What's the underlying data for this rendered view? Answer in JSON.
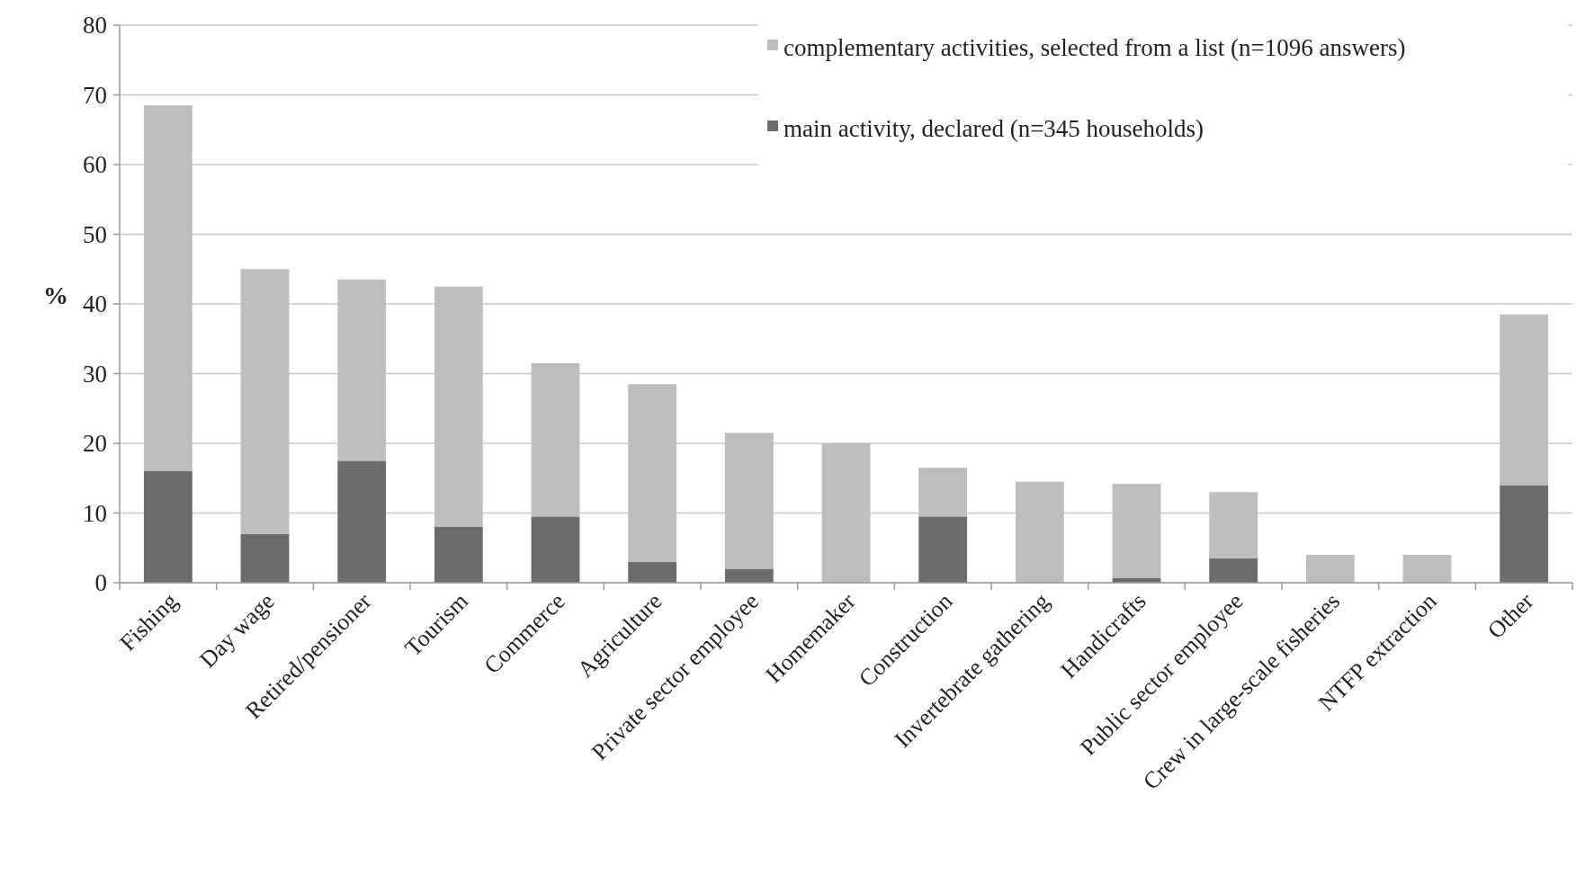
{
  "chart_data": {
    "type": "bar",
    "stacked": true,
    "ylabel": "%",
    "categories": [
      "Fishing",
      "Day wage",
      "Retired/pensioner",
      "Tourism",
      "Commerce",
      "Agriculture",
      "Private sector employee",
      "Homemaker",
      "Construction",
      "Invertebrate gathering",
      "Handicrafts",
      "Public sector employee",
      "Crew in large-scale fisheries",
      "NTFP extraction",
      "Other"
    ],
    "series": [
      {
        "name": "main activity, declared (n=345 households)",
        "color": "#6b6b6b",
        "values": [
          16,
          7,
          17.5,
          8,
          9.5,
          3,
          2,
          0,
          9.5,
          0,
          0.7,
          3.5,
          0,
          0,
          14
        ]
      },
      {
        "name": "complementary activities, selected from a list (n=1096 answers)",
        "color": "#bdbdbd",
        "values": [
          52.5,
          38,
          26,
          34.5,
          22,
          25.5,
          19.5,
          20,
          7,
          14.5,
          13.5,
          9.5,
          4,
          4,
          24.5
        ]
      }
    ],
    "ylim": [
      0,
      80
    ],
    "yticks": [
      0,
      10,
      20,
      30,
      40,
      50,
      60,
      70,
      80
    ],
    "grid": "y",
    "legend": "top right"
  }
}
